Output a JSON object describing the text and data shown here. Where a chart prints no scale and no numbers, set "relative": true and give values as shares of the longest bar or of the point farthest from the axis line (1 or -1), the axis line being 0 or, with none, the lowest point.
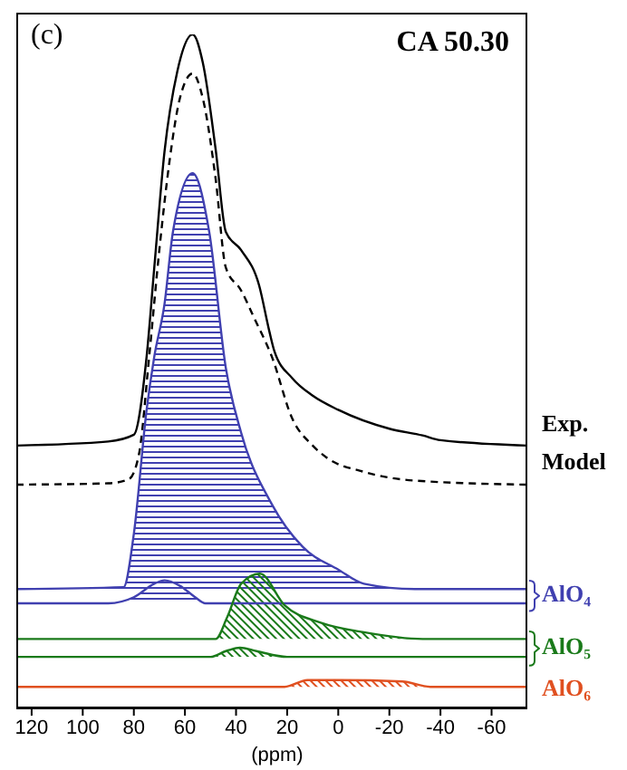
{
  "chart_data": {
    "type": "line",
    "title": "CA 50.30",
    "legend": "right",
    "annotations": [
      "(c)"
    ],
    "xlabel": "(ppm)",
    "relative": true,
    "xlim": [
      126,
      -74
    ],
    "xticks": [
      120,
      100,
      80,
      60,
      40,
      20,
      0,
      -20,
      -40,
      -60
    ],
    "series": [
      {
        "name": "Exp.",
        "color": "#000000",
        "x": [
          126,
          90,
          80,
          75,
          72,
          68,
          63,
          57,
          53,
          48,
          44,
          38,
          31,
          27,
          25,
          18,
          10,
          0,
          -20,
          -33,
          -40,
          -74
        ],
        "values": [
          0.39,
          0.396,
          0.406,
          0.522,
          0.654,
          0.826,
          0.945,
          1.0,
          0.958,
          0.83,
          0.707,
          0.68,
          0.628,
          0.56,
          0.53,
          0.49,
          0.464,
          0.443,
          0.415,
          0.405,
          0.398,
          0.39
        ]
      },
      {
        "name": "Model",
        "color": "#000000",
        "line_style": "dashed",
        "x": [
          126,
          90,
          82,
          78,
          74,
          70,
          66,
          62,
          57,
          53,
          48,
          44,
          38,
          33,
          26,
          18,
          10,
          4.5,
          -10,
          -30,
          -74
        ],
        "values": [
          0.332,
          0.334,
          0.34,
          0.377,
          0.522,
          0.681,
          0.813,
          0.905,
          0.942,
          0.905,
          0.786,
          0.654,
          0.62,
          0.58,
          0.522,
          0.43,
          0.39,
          0.372,
          0.351,
          0.338,
          0.332
        ]
      },
      {
        "name": "AlO₄",
        "type": "area",
        "color": "#4040b0",
        "x": [
          126,
          84,
          80,
          75,
          72,
          68,
          64.7,
          57,
          50.5,
          44,
          38,
          26,
          14,
          0,
          -10,
          -30,
          -74
        ],
        "values": [
          0.177,
          0.18,
          0.259,
          0.443,
          0.522,
          0.6,
          0.707,
          0.794,
          0.707,
          0.505,
          0.409,
          0.303,
          0.24,
          0.206,
          0.185,
          0.177,
          0.177
        ]
      },
      {
        "type": "area",
        "color": "#4040b0",
        "x": [
          126,
          90,
          80,
          72,
          68,
          62,
          56,
          52,
          -74
        ],
        "values": [
          0.156,
          0.156,
          0.165,
          0.185,
          0.19,
          0.182,
          0.165,
          0.156,
          0.156
        ]
      },
      {
        "name": "AlO₅",
        "type": "area",
        "color": "#1a7a1a",
        "x": [
          126,
          48,
          43.5,
          38,
          30.7,
          21,
          6.6,
          -10,
          -33,
          -74
        ],
        "values": [
          0.103,
          0.103,
          0.135,
          0.185,
          0.2,
          0.153,
          0.127,
          0.113,
          0.103,
          0.103
        ]
      },
      {
        "type": "area",
        "color": "#1a7a1a",
        "x": [
          126,
          50,
          44,
          38.5,
          32,
          20,
          -74
        ],
        "values": [
          0.0765,
          0.0765,
          0.085,
          0.09,
          0.085,
          0.0765,
          0.0765
        ]
      },
      {
        "name": "AlO₆",
        "type": "area",
        "color": "#e05020",
        "x": [
          126,
          21,
          12,
          0,
          -25,
          -36,
          -74
        ],
        "values": [
          0.032,
          0.032,
          0.042,
          0.042,
          0.04,
          0.032,
          0.032
        ]
      }
    ]
  }
}
